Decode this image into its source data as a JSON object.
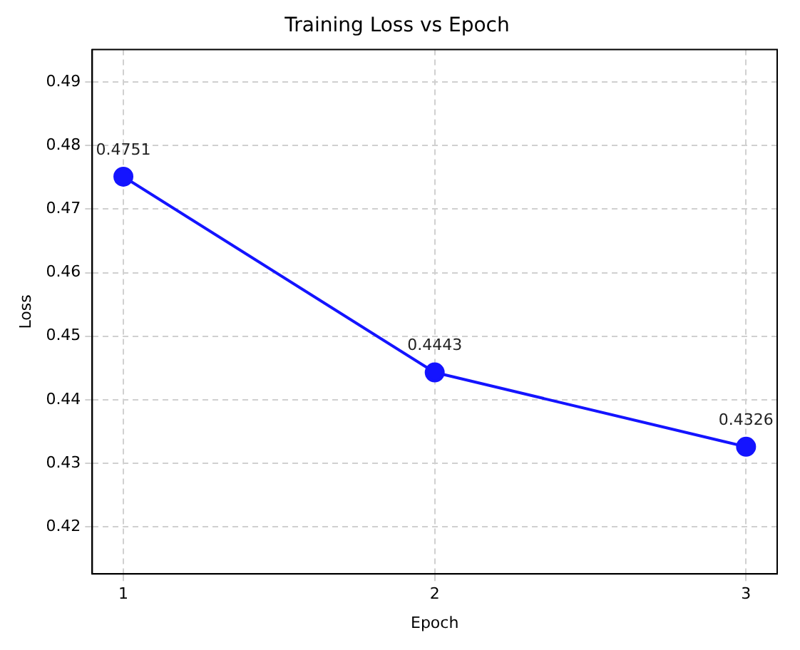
{
  "chart_data": {
    "type": "line",
    "title": "Training Loss vs Epoch",
    "xlabel": "Epoch",
    "ylabel": "Loss",
    "x": [
      1,
      2,
      3
    ],
    "series": [
      {
        "color": "#1414ff",
        "values": [
          0.4751,
          0.4443,
          0.4326
        ]
      }
    ],
    "xlim": [
      0.9,
      3.1
    ],
    "xticks": [
      1,
      2,
      3
    ],
    "ylim": [
      0.4126,
      0.4951
    ],
    "yticks": [
      0.42,
      0.43,
      0.44,
      0.45,
      0.46,
      0.47,
      0.48,
      0.49
    ],
    "grid": true,
    "marker": "circle",
    "line_style": "solid",
    "data_labels": true
  }
}
